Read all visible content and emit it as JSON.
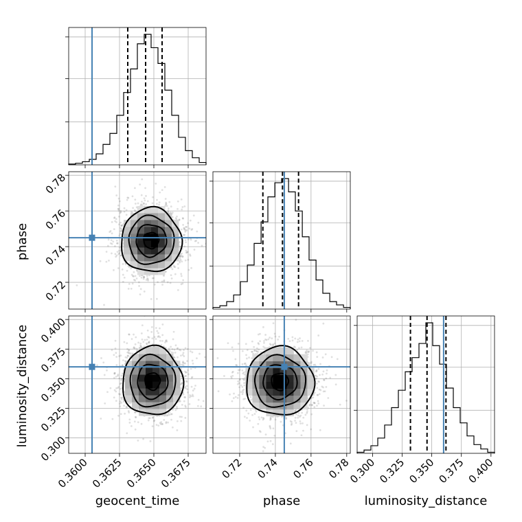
{
  "chart_data": {
    "type": "corner",
    "parameters": [
      "geocent_time",
      "phase",
      "luminosity_distance"
    ],
    "axis_labels": {
      "geocent_time": "geocent_time",
      "phase": "phase",
      "luminosity_distance": "luminosity_distance"
    },
    "ranges": {
      "geocent_time": [
        0.3588,
        0.3688
      ],
      "phase": [
        0.705,
        0.782
      ],
      "luminosity_distance": [
        0.287,
        0.403
      ]
    },
    "ticks": {
      "geocent_time": [
        0.36,
        0.3625,
        0.365,
        0.3675
      ],
      "phase": [
        0.72,
        0.74,
        0.76,
        0.78
      ],
      "luminosity_distance": [
        0.3,
        0.325,
        0.35,
        0.375,
        0.4
      ]
    },
    "tick_labels": {
      "geocent_time": [
        "0.3600",
        "0.3625",
        "0.3650",
        "0.3675"
      ],
      "phase": [
        "0.72",
        "0.74",
        "0.76",
        "0.78"
      ],
      "luminosity_distance": [
        "0.300",
        "0.325",
        "0.350",
        "0.375",
        "0.400"
      ]
    },
    "truths": {
      "geocent_time": 0.3605,
      "phase": 0.745,
      "luminosity_distance": 0.36
    },
    "truth_color": "#4682b4",
    "quantiles": {
      "geocent_time": [
        0.3631,
        0.3644,
        0.3656
      ],
      "phase": [
        0.733,
        0.744,
        0.753
      ],
      "luminosity_distance": [
        0.332,
        0.346,
        0.362
      ]
    },
    "posterior_summary": {
      "geocent_time": {
        "mean": 0.3647,
        "sd": 0.0011
      },
      "phase": {
        "mean": 0.744,
        "sd": 0.009
      },
      "luminosity_distance": {
        "mean": 0.348,
        "sd": 0.014
      }
    },
    "histograms": {
      "geocent_time": {
        "edges": [
          0.3588,
          0.3593,
          0.3598,
          0.3603,
          0.3608,
          0.3613,
          0.3618,
          0.3623,
          0.3628,
          0.3633,
          0.3638,
          0.3643,
          0.3648,
          0.3653,
          0.3658,
          0.3663,
          0.3668,
          0.3673,
          0.3678,
          0.3683,
          0.3688
        ],
        "counts": [
          1,
          2,
          4,
          7,
          14,
          26,
          40,
          63,
          92,
          122,
          154,
          166,
          149,
          129,
          95,
          63,
          35,
          18,
          9,
          3
        ]
      },
      "phase": {
        "edges": [
          0.705,
          0.7089,
          0.7127,
          0.7166,
          0.7204,
          0.7243,
          0.7281,
          0.732,
          0.7358,
          0.7397,
          0.7435,
          0.7474,
          0.7512,
          0.7551,
          0.7589,
          0.7628,
          0.7666,
          0.7705,
          0.7743,
          0.7782,
          0.782
        ],
        "counts": [
          2,
          4,
          9,
          17,
          33,
          53,
          79,
          105,
          135,
          152,
          157,
          141,
          118,
          87,
          59,
          35,
          19,
          9,
          5,
          2
        ]
      },
      "luminosity_distance": {
        "edges": [
          0.287,
          0.2928,
          0.2986,
          0.3044,
          0.3102,
          0.316,
          0.3218,
          0.3276,
          0.3334,
          0.3392,
          0.345,
          0.3508,
          0.3566,
          0.3624,
          0.3682,
          0.374,
          0.3798,
          0.3856,
          0.3914,
          0.3972,
          0.403
        ],
        "counts": [
          1,
          3,
          7,
          14,
          26,
          42,
          58,
          75,
          88,
          101,
          120,
          99,
          82,
          60,
          42,
          28,
          16,
          8,
          4,
          1
        ]
      }
    },
    "density_2d": {
      "phase_vs_geocent_time": {
        "x_param": "geocent_time",
        "y_param": "phase",
        "center": [
          0.3648,
          0.7435
        ],
        "sd": [
          0.0011,
          0.009
        ],
        "contour_levels_sigma": [
          0.5,
          1.0,
          1.5,
          2.0
        ]
      },
      "luminosity_distance_vs_geocent_time": {
        "x_param": "geocent_time",
        "y_param": "luminosity_distance",
        "center": [
          0.3649,
          0.3478
        ],
        "sd": [
          0.0011,
          0.0145
        ],
        "contour_levels_sigma": [
          0.5,
          1.0,
          1.5,
          2.0
        ]
      },
      "luminosity_distance_vs_phase": {
        "x_param": "phase",
        "y_param": "luminosity_distance",
        "center": [
          0.7425,
          0.3475
        ],
        "sd": [
          0.0095,
          0.0145
        ],
        "contour_levels_sigma": [
          0.5,
          1.0,
          1.5,
          2.0
        ]
      }
    },
    "grid": true
  }
}
